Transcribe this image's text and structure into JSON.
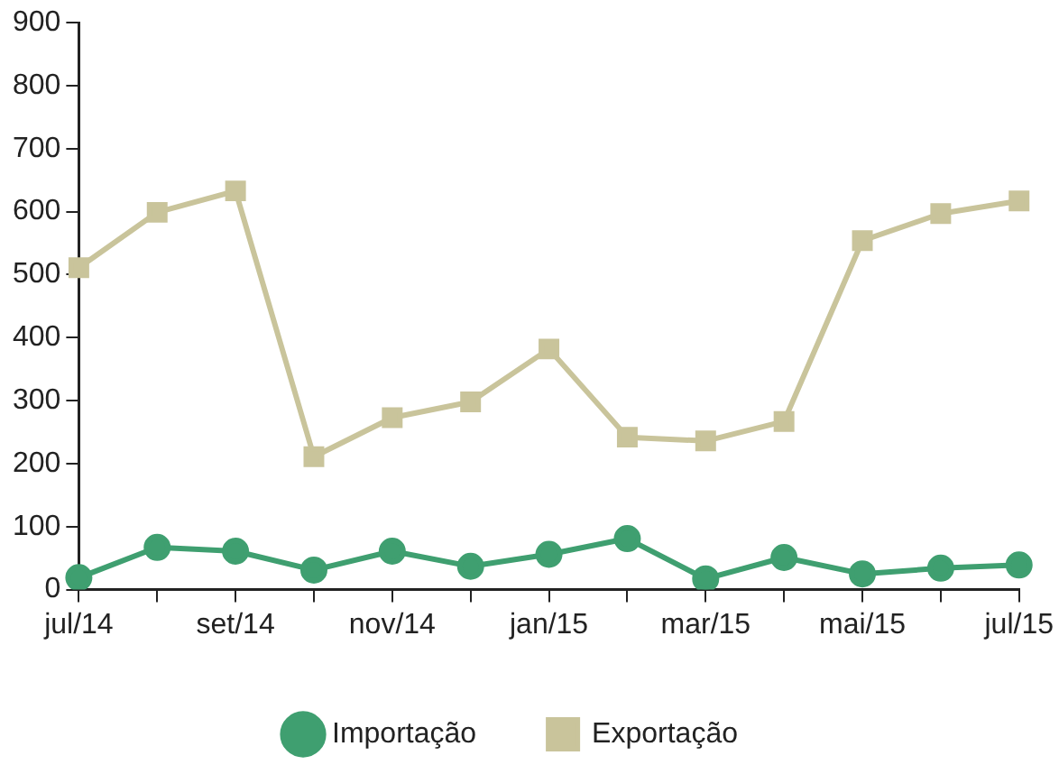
{
  "chart_data": {
    "type": "line",
    "categories": [
      "jul/14",
      null,
      "set/14",
      null,
      "nov/14",
      null,
      "jan/15",
      null,
      "mar/15",
      null,
      "mai/15",
      null,
      "jul/15"
    ],
    "series": [
      {
        "name": "Importação",
        "color": "#3f9f70",
        "marker": "circle",
        "values": [
          19,
          67,
          61,
          31,
          61,
          37,
          56,
          81,
          17,
          51,
          25,
          34,
          39
        ]
      },
      {
        "name": "Exportação",
        "color": "#c9c49b",
        "marker": "square",
        "values": [
          511,
          599,
          633,
          211,
          273,
          298,
          382,
          242,
          236,
          267,
          554,
          597,
          617
        ]
      }
    ],
    "ylim": [
      0,
      900
    ],
    "yticks": [
      0,
      100,
      200,
      300,
      400,
      500,
      600,
      700,
      800,
      900
    ],
    "grid": false,
    "legend": "bottom",
    "line_style": "solid"
  }
}
